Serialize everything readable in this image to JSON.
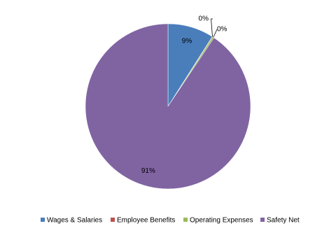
{
  "chart_data": {
    "type": "pie",
    "categories": [
      "Wages & Salaries",
      "Employee Benefits",
      "Operating Expenses",
      "Safety Net"
    ],
    "values": [
      9.0,
      0.1,
      0.3,
      90.6
    ],
    "value_labels": [
      "9%",
      "0%",
      "0%",
      "91%"
    ],
    "colors": [
      "#4a7ebb",
      "#c0504d",
      "#9bbb59",
      "#8064a2"
    ],
    "legend": "bottom"
  }
}
